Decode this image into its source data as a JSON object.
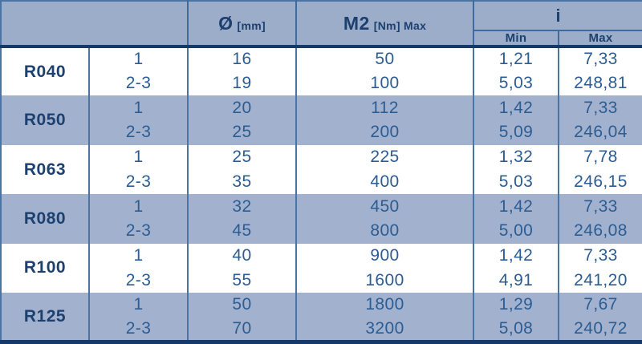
{
  "colors": {
    "header_bg": "#9cadca",
    "band_bg": "#a2b1cd",
    "heading_text": "#1c406f",
    "data_text": "#2b5d94",
    "thick_rule": "#16386b",
    "thin_rule": "#3f6a9b"
  },
  "table": {
    "header": {
      "dia_main": "Ø",
      "dia_unit": "[mm]",
      "m2_main": "M2",
      "m2_unit": "[Nm] Max",
      "i_label": "i",
      "i_min": "Min",
      "i_max": "Max"
    },
    "groups": [
      {
        "label": "R040",
        "rows": [
          {
            "stages": "1",
            "diameter": "16",
            "m2_max": "50",
            "i_min": "1,21",
            "i_max": "7,33"
          },
          {
            "stages": "2-3",
            "diameter": "19",
            "m2_max": "100",
            "i_min": "5,03",
            "i_max": "248,81"
          }
        ]
      },
      {
        "label": "R050",
        "rows": [
          {
            "stages": "1",
            "diameter": "20",
            "m2_max": "112",
            "i_min": "1,42",
            "i_max": "7,33"
          },
          {
            "stages": "2-3",
            "diameter": "25",
            "m2_max": "200",
            "i_min": "5,09",
            "i_max": "246,04"
          }
        ]
      },
      {
        "label": "R063",
        "rows": [
          {
            "stages": "1",
            "diameter": "25",
            "m2_max": "225",
            "i_min": "1,32",
            "i_max": "7,78"
          },
          {
            "stages": "2-3",
            "diameter": "35",
            "m2_max": "400",
            "i_min": "5,03",
            "i_max": "246,15"
          }
        ]
      },
      {
        "label": "R080",
        "rows": [
          {
            "stages": "1",
            "diameter": "32",
            "m2_max": "450",
            "i_min": "1,42",
            "i_max": "7,33"
          },
          {
            "stages": "2-3",
            "diameter": "45",
            "m2_max": "800",
            "i_min": "5,00",
            "i_max": "246,08"
          }
        ]
      },
      {
        "label": "R100",
        "rows": [
          {
            "stages": "1",
            "diameter": "40",
            "m2_max": "900",
            "i_min": "1,42",
            "i_max": "7,33"
          },
          {
            "stages": "2-3",
            "diameter": "55",
            "m2_max": "1600",
            "i_min": "4,91",
            "i_max": "241,20"
          }
        ]
      },
      {
        "label": "R125",
        "rows": [
          {
            "stages": "1",
            "diameter": "50",
            "m2_max": "1800",
            "i_min": "1,29",
            "i_max": "7,67"
          },
          {
            "stages": "2-3",
            "diameter": "70",
            "m2_max": "3200",
            "i_min": "5,08",
            "i_max": "240,72"
          }
        ]
      }
    ]
  }
}
